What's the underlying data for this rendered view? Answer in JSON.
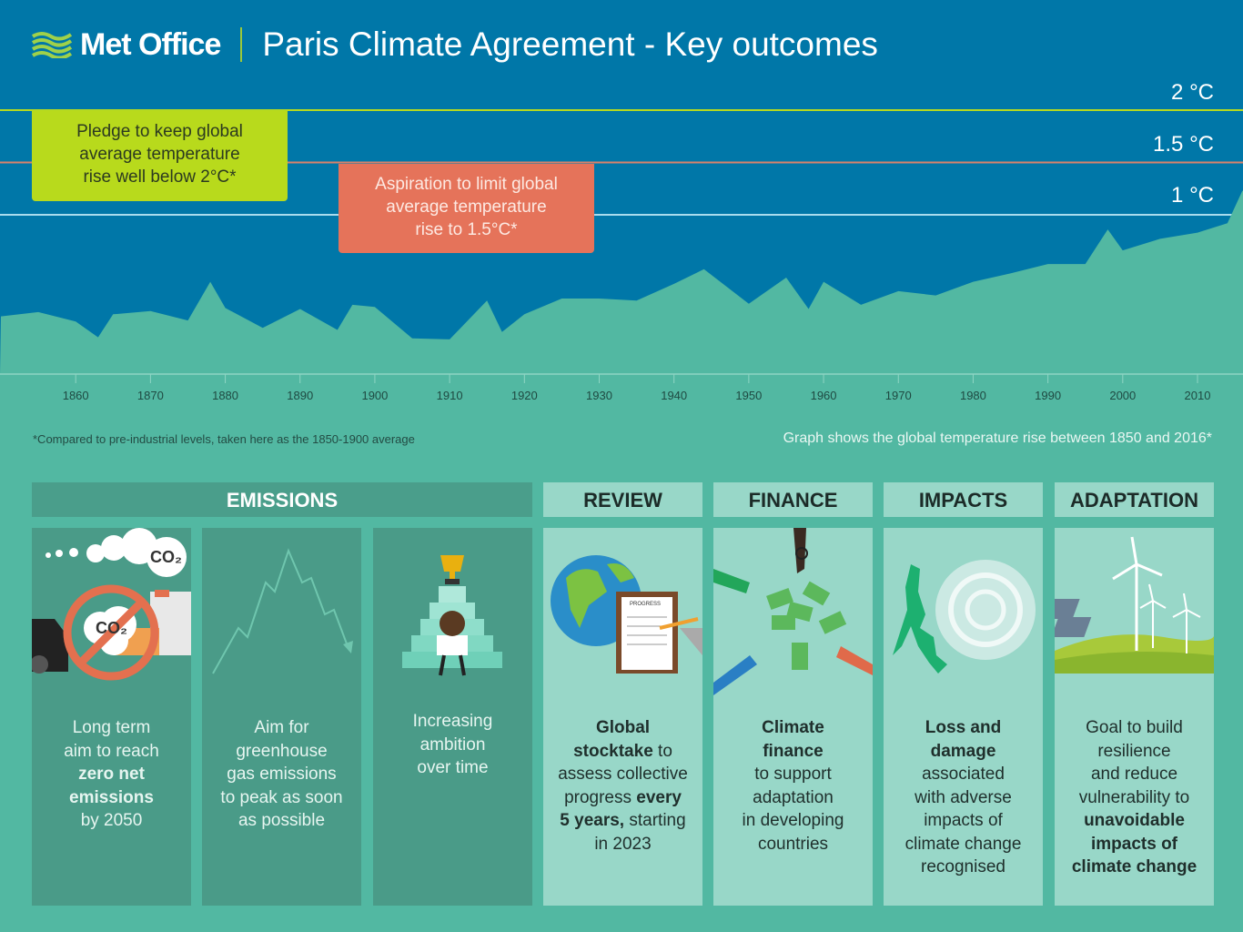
{
  "header": {
    "logo": "Met Office",
    "title": "Paris Climate Agreement - Key outcomes"
  },
  "thresholds": [
    {
      "label": "2 °C",
      "value": 2,
      "color": "#b5d920"
    },
    {
      "label": "1.5 °C",
      "value": 1.5,
      "color": "#d9826a"
    },
    {
      "label": "1 °C",
      "value": 1,
      "color": "#a9dcee"
    }
  ],
  "callouts": {
    "pledge": [
      "Pledge to keep global",
      "average temperature",
      "rise well below 2°C*"
    ],
    "aspiration": [
      "Aspiration to limit global",
      "average temperature",
      "rise to 1.5°C*"
    ]
  },
  "footnotes": {
    "left": "*Compared to pre-industrial levels, taken here as the 1850-1900 average",
    "right": "Graph shows the global temperature rise between 1850 and 2016*"
  },
  "colors": {
    "sky": "#0077a8",
    "area": "#52b8a2",
    "dark_panel": "#4a9b88",
    "light_panel": "#98d7c8"
  },
  "chart_data": {
    "type": "area",
    "title": "",
    "xlabel": "",
    "ylabel": "",
    "xlim": [
      1850,
      2016
    ],
    "ylim": [
      -0.5,
      2.2
    ],
    "x_ticks": [
      "1860",
      "1870",
      "1880",
      "1890",
      "1900",
      "1910",
      "1920",
      "1930",
      "1940",
      "1950",
      "1960",
      "1970",
      "1980",
      "1990",
      "2000",
      "2010"
    ],
    "reference_lines": [
      2,
      1.5,
      1
    ],
    "grid": false,
    "x": [
      1850,
      1855,
      1860,
      1863,
      1865,
      1870,
      1875,
      1878,
      1880,
      1885,
      1890,
      1895,
      1897,
      1900,
      1905,
      1910,
      1915,
      1917,
      1920,
      1925,
      1930,
      1935,
      1940,
      1944,
      1950,
      1955,
      1958,
      1960,
      1965,
      1970,
      1975,
      1980,
      1985,
      1990,
      1995,
      1998,
      2000,
      2005,
      2010,
      2014,
      2016
    ],
    "values": [
      0.03,
      0.07,
      -0.02,
      -0.17,
      0.05,
      0.08,
      -0.01,
      0.36,
      0.11,
      -0.08,
      0.1,
      -0.1,
      0.14,
      0.12,
      -0.18,
      -0.19,
      0.18,
      -0.12,
      0.05,
      0.2,
      0.2,
      0.18,
      0.34,
      0.48,
      0.15,
      0.4,
      0.1,
      0.36,
      0.14,
      0.27,
      0.23,
      0.36,
      0.44,
      0.53,
      0.53,
      0.86,
      0.66,
      0.77,
      0.83,
      0.92,
      1.23
    ]
  },
  "sections": {
    "emissions": "EMISSIONS",
    "review": "REVIEW",
    "finance": "FINANCE",
    "impacts": "IMPACTS",
    "adaptation": "ADAPTATION"
  },
  "cards": {
    "zero_net": {
      "co2": "CO₂",
      "lines": [
        "Long term",
        "aim to reach",
        "zero net",
        "emissions",
        "by 2050"
      ]
    },
    "peak": {
      "lines": [
        "Aim for",
        "greenhouse",
        "gas emissions",
        "to peak as soon",
        "as possible"
      ]
    },
    "ambition": {
      "lines": [
        "Increasing",
        "ambition",
        "over time"
      ]
    },
    "stocktake": {
      "clipboard": "PROGRESS",
      "l1": "Global",
      "l2b": "stocktake",
      "l2": " to",
      "l3": "assess collective",
      "l4": "progress ",
      "l4b": "every",
      "l5b": "5 years,",
      "l5": " starting",
      "l6": "in 2023"
    },
    "finance": {
      "lines": [
        "Climate",
        "finance",
        "to support",
        "adaptation",
        "in developing",
        "countries"
      ]
    },
    "loss": {
      "lines": [
        "Loss and",
        "damage",
        "associated",
        "with adverse",
        "impacts of",
        "climate change",
        "recognised"
      ]
    },
    "adapt": {
      "lines": [
        "Goal to build",
        "resilience",
        "and reduce",
        "vulnerability to",
        "unavoidable",
        "impacts of",
        "climate change"
      ]
    }
  }
}
